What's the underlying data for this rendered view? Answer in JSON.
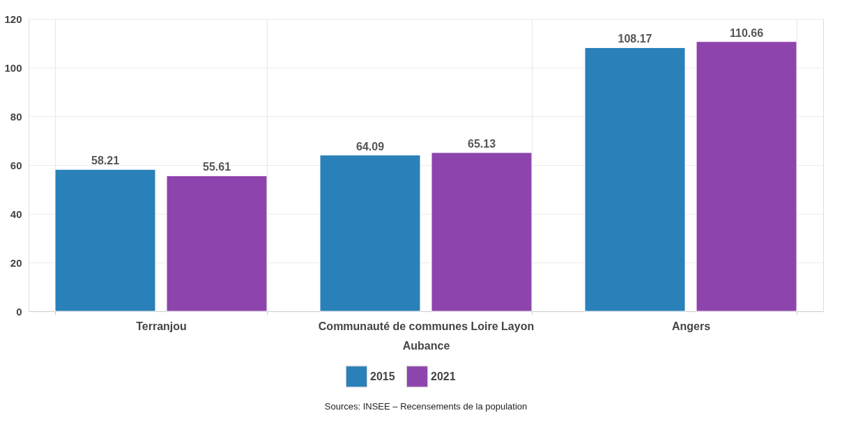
{
  "chart_data": {
    "type": "bar",
    "categories": [
      "Terranjou",
      "Communauté de communes Loire Layon Aubance",
      "Angers"
    ],
    "series": [
      {
        "name": "2015",
        "color": "#2a80b9",
        "values": [
          58.21,
          64.09,
          108.17
        ]
      },
      {
        "name": "2021",
        "color": "#8e44ad",
        "values": [
          55.61,
          65.13,
          110.66
        ]
      }
    ],
    "ylim": [
      0,
      120
    ],
    "yticks": [
      0,
      20,
      40,
      60,
      80,
      100,
      120
    ],
    "grid": true,
    "legend": "bottom",
    "data_labels": true,
    "annotations": [
      "Sources: INSEE – Recensements de la population"
    ]
  }
}
